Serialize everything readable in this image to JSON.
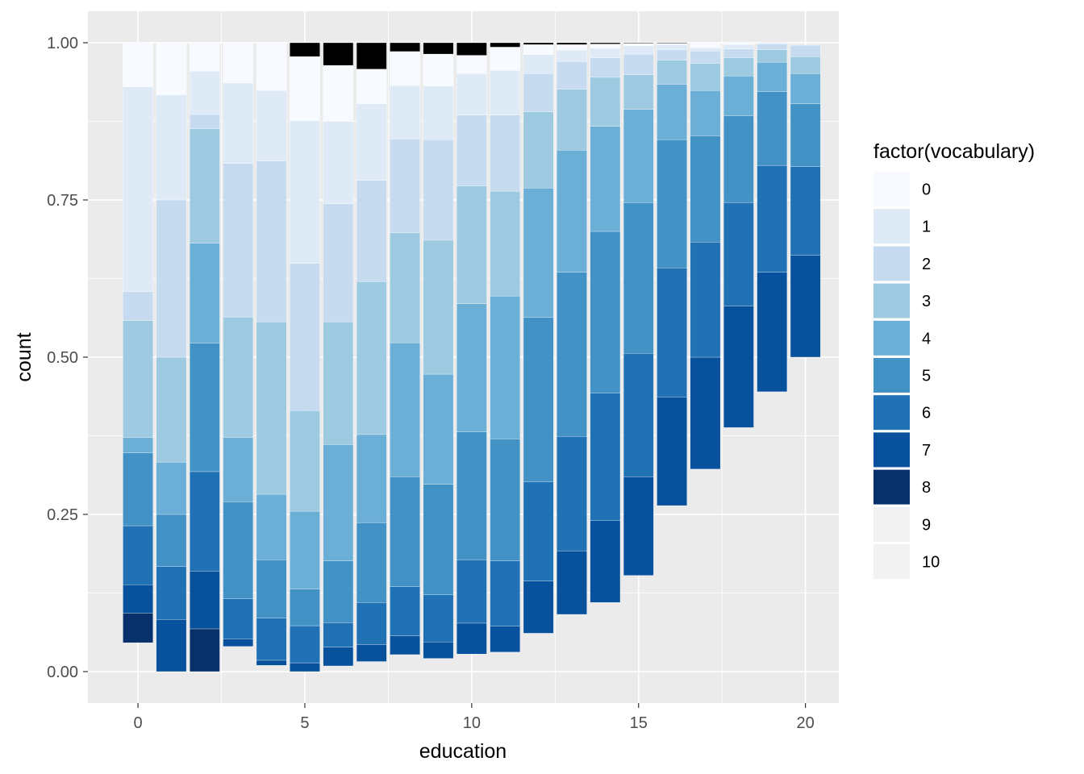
{
  "chart_data": {
    "type": "bar",
    "stacked": true,
    "normalized": true,
    "xlabel": "education",
    "ylabel": "count",
    "x_ticks": [
      "0",
      "5",
      "10",
      "15",
      "20"
    ],
    "y_ticks": [
      "0.00",
      "0.25",
      "0.50",
      "0.75",
      "1.00"
    ],
    "xlim": [
      -1.5,
      21
    ],
    "ylim": [
      -0.05,
      1.05
    ],
    "legend_title": "factor(vocabulary)",
    "legend_position": "right",
    "legend_entries": [
      {
        "label": "0",
        "color": "#F7FBFF"
      },
      {
        "label": "1",
        "color": "#DEEBF7"
      },
      {
        "label": "2",
        "color": "#C6DBEF"
      },
      {
        "label": "3",
        "color": "#9ECAE1"
      },
      {
        "label": "4",
        "color": "#6BAED6"
      },
      {
        "label": "5",
        "color": "#4292C6"
      },
      {
        "label": "6",
        "color": "#2171B5"
      },
      {
        "label": "7",
        "color": "#08519C"
      },
      {
        "label": "8",
        "color": "#08306B"
      },
      {
        "label": "9",
        "color": "#F2F2F2"
      },
      {
        "label": "10",
        "color": "#F2F2F2"
      }
    ],
    "bars": [
      {
        "x": 0,
        "bounds": [
          0.046,
          0.093,
          0.138,
          0.232,
          0.348,
          0.372,
          0.558,
          0.604,
          0.93,
          1.0
        ]
      },
      {
        "x": 1,
        "bounds": [
          0.0,
          0.0,
          0.083,
          0.167,
          0.25,
          0.333,
          0.5,
          0.75,
          0.917,
          1.0
        ]
      },
      {
        "x": 2,
        "bounds": [
          0.0,
          0.068,
          0.16,
          0.318,
          0.522,
          0.681,
          0.863,
          0.886,
          0.955,
          1.0
        ]
      },
      {
        "x": 3,
        "bounds": [
          0.04,
          0.04,
          0.052,
          0.116,
          0.27,
          0.372,
          0.564,
          0.808,
          0.936,
          1.0
        ]
      },
      {
        "x": 4,
        "bounds": [
          0.01,
          0.01,
          0.018,
          0.085,
          0.178,
          0.282,
          0.556,
          0.812,
          0.924,
          1.0
        ]
      },
      {
        "x": 5,
        "bounds": [
          0.0,
          0.0,
          0.014,
          0.073,
          0.131,
          0.255,
          0.415,
          0.649,
          0.876,
          0.978,
          1.0
        ]
      },
      {
        "x": 6,
        "bounds": [
          0.009,
          0.009,
          0.039,
          0.078,
          0.176,
          0.361,
          0.556,
          0.744,
          0.875,
          0.964,
          1.0
        ]
      },
      {
        "x": 7,
        "bounds": [
          0.016,
          0.016,
          0.043,
          0.11,
          0.237,
          0.377,
          0.62,
          0.781,
          0.903,
          0.958,
          1.0
        ]
      },
      {
        "x": 8,
        "bounds": [
          0.027,
          0.027,
          0.057,
          0.135,
          0.31,
          0.523,
          0.698,
          0.847,
          0.932,
          0.986,
          1.0
        ]
      },
      {
        "x": 9,
        "bounds": [
          0.021,
          0.021,
          0.047,
          0.122,
          0.298,
          0.473,
          0.686,
          0.846,
          0.931,
          0.982,
          1.0
        ]
      },
      {
        "x": 10,
        "bounds": [
          0.028,
          0.028,
          0.077,
          0.178,
          0.381,
          0.585,
          0.772,
          0.885,
          0.951,
          0.98,
          1.0
        ]
      },
      {
        "x": 11,
        "bounds": [
          0.031,
          0.031,
          0.072,
          0.176,
          0.37,
          0.597,
          0.764,
          0.885,
          0.956,
          0.993,
          1.0
        ]
      },
      {
        "x": 12,
        "bounds": [
          0.061,
          0.061,
          0.144,
          0.302,
          0.563,
          0.769,
          0.89,
          0.951,
          0.981,
          0.997,
          1.0
        ]
      },
      {
        "x": 13,
        "bounds": [
          0.091,
          0.091,
          0.192,
          0.374,
          0.635,
          0.829,
          0.926,
          0.97,
          0.988,
          0.997,
          1.0
        ]
      },
      {
        "x": 14,
        "bounds": [
          0.11,
          0.11,
          0.24,
          0.443,
          0.7,
          0.867,
          0.945,
          0.976,
          0.991,
          0.998,
          1.0
        ]
      },
      {
        "x": 15,
        "bounds": [
          0.153,
          0.153,
          0.31,
          0.506,
          0.746,
          0.894,
          0.949,
          0.982,
          0.995,
          0.999,
          1.0
        ]
      },
      {
        "x": 16,
        "bounds": [
          0.264,
          0.264,
          0.437,
          0.642,
          0.846,
          0.934,
          0.972,
          0.989,
          0.997,
          0.999,
          1.0
        ]
      },
      {
        "x": 17,
        "bounds": [
          0.322,
          0.322,
          0.5,
          0.683,
          0.852,
          0.924,
          0.967,
          0.987,
          0.992,
          1.0
        ]
      },
      {
        "x": 18,
        "bounds": [
          0.388,
          0.388,
          0.581,
          0.746,
          0.884,
          0.947,
          0.976,
          0.99,
          0.997,
          1.0
        ]
      },
      {
        "x": 19,
        "bounds": [
          0.445,
          0.445,
          0.635,
          0.805,
          0.922,
          0.969,
          0.989,
          0.998,
          1.0
        ]
      },
      {
        "x": 20,
        "bounds": [
          0.5,
          0.5,
          0.662,
          0.803,
          0.903,
          0.951,
          0.978,
          0.996
        ]
      }
    ]
  }
}
